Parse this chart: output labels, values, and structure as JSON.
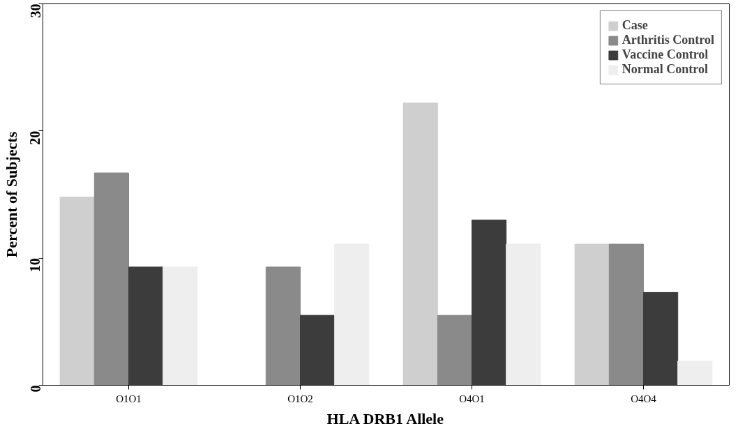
{
  "chart_data": {
    "type": "bar",
    "xlabel": "HLA DRB1 Allele",
    "ylabel": "Percent of Subjects",
    "categories": [
      "O1O1",
      "O1O2",
      "O4O1",
      "O4O4"
    ],
    "series": [
      {
        "name": "Case",
        "color": "#cfcfcf",
        "values": [
          14.8,
          0,
          22.2,
          11.1
        ]
      },
      {
        "name": "Arthritis Control",
        "color": "#8a8a8a",
        "values": [
          16.7,
          9.3,
          5.5,
          11.1
        ]
      },
      {
        "name": "Vaccine Control",
        "color": "#3c3c3c",
        "values": [
          9.3,
          5.5,
          13.0,
          7.3
        ]
      },
      {
        "name": "Normal Control",
        "color": "#eeeeee",
        "values": [
          9.3,
          11.1,
          11.1,
          1.9
        ]
      }
    ],
    "ylim": [
      0,
      30
    ],
    "yticks": [
      0,
      10,
      20,
      30
    ],
    "grid": false,
    "legend": "top right"
  }
}
